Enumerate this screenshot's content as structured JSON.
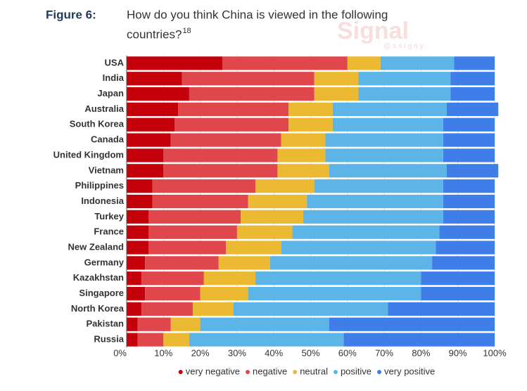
{
  "figure_label": "Figure 6:",
  "watermark": {
    "name": "Signal",
    "handle": "@ssigny"
  },
  "chart_data": {
    "type": "stacked_barh",
    "title": "How do you think China is viewed in the following",
    "title_line2": "countries?",
    "footnote_ref": "18",
    "categories": [
      "USA",
      "India",
      "Japan",
      "Australia",
      "South Korea",
      "Canada",
      "United Kingdom",
      "Vietnam",
      "Philippines",
      "Indonesia",
      "Turkey",
      "France",
      "New Zealand",
      "Germany",
      "Kazakhstan",
      "Singapore",
      "North Korea",
      "Pakistan",
      "Russia"
    ],
    "series": [
      {
        "name": "very negative",
        "color": "#c4000b",
        "values": [
          26,
          15,
          17,
          14,
          13,
          12,
          10,
          10,
          7,
          7,
          6,
          6,
          6,
          5,
          4,
          5,
          4,
          3,
          3
        ]
      },
      {
        "name": "negative",
        "color": "#e0474c",
        "values": [
          34,
          36,
          34,
          30,
          31,
          30,
          31,
          31,
          28,
          26,
          25,
          24,
          21,
          20,
          17,
          15,
          14,
          9,
          7
        ]
      },
      {
        "name": "neutral",
        "color": "#ebb932",
        "values": [
          9,
          12,
          12,
          12,
          12,
          12,
          13,
          14,
          16,
          16,
          17,
          15,
          15,
          14,
          14,
          13,
          11,
          8,
          7
        ]
      },
      {
        "name": "positive",
        "color": "#5cb5e6",
        "values": [
          20,
          25,
          25,
          31,
          30,
          32,
          32,
          32,
          35,
          37,
          38,
          40,
          42,
          44,
          45,
          47,
          42,
          35,
          42
        ]
      },
      {
        "name": "very positive",
        "color": "#3f7ee8",
        "values": [
          11,
          12,
          12,
          14,
          14,
          14,
          14,
          14,
          14,
          14,
          14,
          15,
          16,
          17,
          20,
          20,
          29,
          45,
          41
        ]
      }
    ],
    "xlim": [
      0,
      100
    ],
    "xticks": [
      {
        "value": 0,
        "label": "0%"
      },
      {
        "value": 10,
        "label": "10%"
      },
      {
        "value": 20,
        "label": "20%"
      },
      {
        "value": 30,
        "label": "30%"
      },
      {
        "value": 40,
        "label": "40%"
      },
      {
        "value": 50,
        "label": "50%"
      },
      {
        "value": 60,
        "label": "60%"
      },
      {
        "value": 70,
        "label": "70%"
      },
      {
        "value": 80,
        "label": "80%"
      },
      {
        "value": 90,
        "label": "90%"
      },
      {
        "value": 100,
        "label": "100%"
      }
    ],
    "grid": true
  }
}
